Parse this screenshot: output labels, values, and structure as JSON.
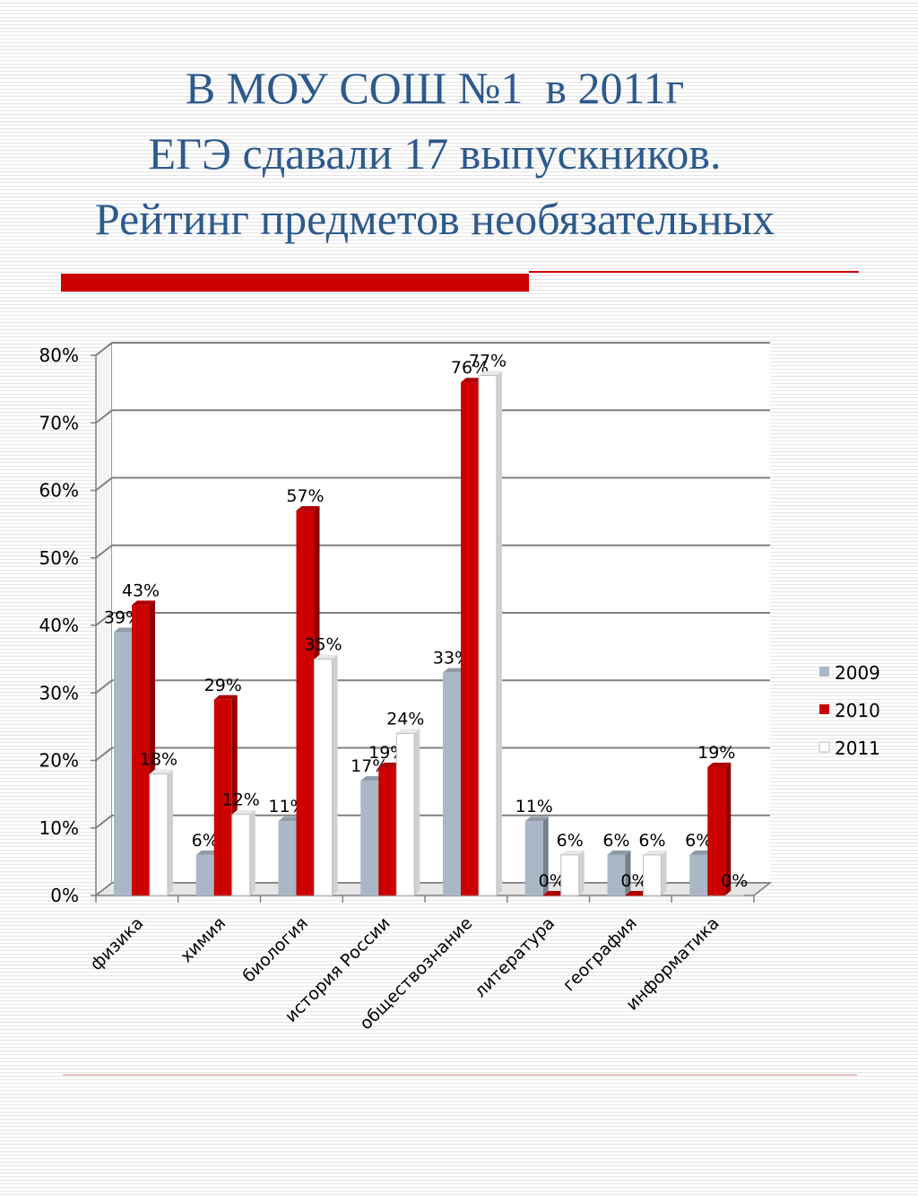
{
  "title": {
    "line1": "В МОУ СОШ №1  в 2011г",
    "line2": "ЕГЭ сдавали 17 выпускников.",
    "line3": "Рейтинг предметов необязательных"
  },
  "colors": {
    "title": "#2d5a8c",
    "accent": "#cc0000",
    "series_2009": "#a9b7c6",
    "series_2010": "#cc0000",
    "series_2011": "#ffffff"
  },
  "chart_data": {
    "type": "bar",
    "categories": [
      "физика",
      "химия",
      "биология",
      "история России",
      "обществознание",
      "литература",
      "география",
      "информатика"
    ],
    "series": [
      {
        "name": "2009",
        "values": [
          39,
          6,
          11,
          17,
          33,
          11,
          6,
          6
        ],
        "labels": [
          "39%",
          "6%",
          "11%",
          "17%",
          "33%",
          "11%",
          "6%",
          "6%"
        ]
      },
      {
        "name": "2010",
        "values": [
          43,
          29,
          57,
          19,
          76,
          0,
          0,
          19
        ],
        "labels": [
          "43%",
          "29%",
          "57%",
          "19%",
          "76%",
          "0%",
          "0%",
          "19%"
        ]
      },
      {
        "name": "2011",
        "values": [
          18,
          12,
          35,
          24,
          77,
          6,
          6,
          0
        ],
        "labels": [
          "18%",
          "12%",
          "35%",
          "24%",
          "77%",
          "6%",
          "6%",
          "0%"
        ]
      }
    ],
    "ylim": [
      0,
      80
    ],
    "yticks": [
      "0%",
      "10%",
      "20%",
      "30%",
      "40%",
      "50%",
      "60%",
      "70%",
      "80%"
    ],
    "grid": true,
    "legend": "right",
    "three_d": true
  }
}
